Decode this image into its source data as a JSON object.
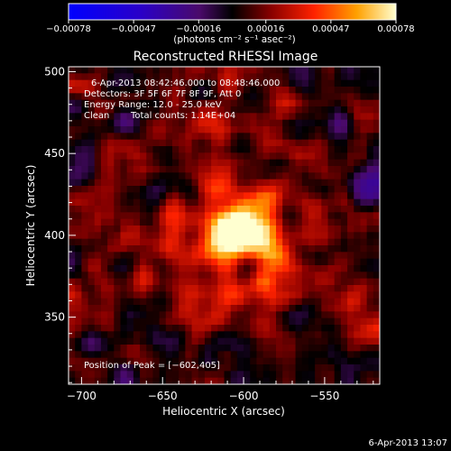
{
  "chart_data": {
    "type": "heatmap",
    "title": "Reconstructed RHESSI Image",
    "xlabel": "Heliocentric X (arcsec)",
    "ylabel": "Heliocentric Y (arcsec)",
    "xlim": [
      -708,
      -516
    ],
    "ylim": [
      309,
      503
    ],
    "x_ticks": [
      -700,
      -650,
      -600,
      -550
    ],
    "y_ticks": [
      350,
      400,
      450,
      500
    ],
    "x_tick_labels": [
      "−700",
      "−650",
      "−600",
      "−550"
    ],
    "y_tick_labels": [
      "350",
      "400",
      "450",
      "500"
    ],
    "colorbar": {
      "range": [
        -0.00078,
        0.00078
      ],
      "ticks": [
        -0.00078,
        -0.00047,
        -0.00016,
        0.00016,
        0.00047,
        0.00078
      ],
      "tick_labels": [
        "−0.00078",
        "−0.00047",
        "−0.00016",
        "0.00016",
        "0.00047",
        "0.00078"
      ],
      "unit_label": "(photons cm⁻² s⁻¹ asec⁻²)"
    },
    "peak": {
      "x": -602,
      "y": 405,
      "value": 0.00078
    },
    "annotations": {
      "time_range": "6-Apr-2013 08:42:46.000 to 08:48:46.000",
      "detectors": "Detectors: 3F 5F 6F 7F 8F 9F, Att 0",
      "energy": "Energy Range: 12.0 - 25.0 keV",
      "method": "Clean",
      "total_counts": "Total counts: 1.14E+04",
      "peak_position": "Position of Peak = [−602,405]"
    },
    "footer_timestamp": "6-Apr-2013 13:07"
  }
}
